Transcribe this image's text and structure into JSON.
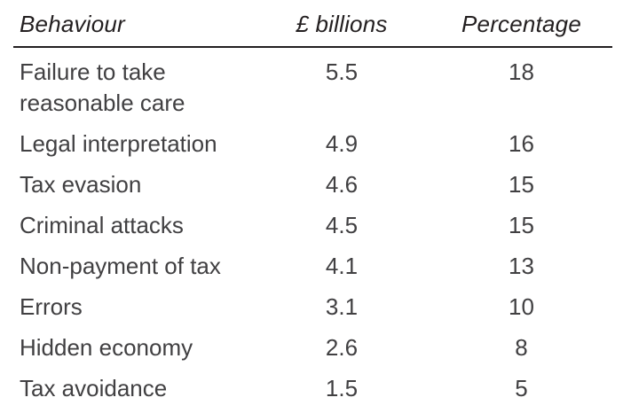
{
  "table": {
    "columns": [
      {
        "label": "Behaviour"
      },
      {
        "label": "£ billions"
      },
      {
        "label": "Percentage"
      }
    ],
    "rows": [
      {
        "behaviour": "Failure to take reasonable care",
        "billions": "5.5",
        "percentage": "18"
      },
      {
        "behaviour": "Legal interpretation",
        "billions": "4.9",
        "percentage": "16"
      },
      {
        "behaviour": "Tax evasion",
        "billions": "4.6",
        "percentage": "15"
      },
      {
        "behaviour": "Criminal attacks",
        "billions": "4.5",
        "percentage": "15"
      },
      {
        "behaviour": "Non-payment of tax",
        "billions": "4.1",
        "percentage": "13"
      },
      {
        "behaviour": "Errors",
        "billions": "3.1",
        "percentage": "10"
      },
      {
        "behaviour": "Hidden economy",
        "billions": "2.6",
        "percentage": "8"
      },
      {
        "behaviour": "Tax avoidance",
        "billions": "1.5",
        "percentage": "5"
      }
    ]
  },
  "colors": {
    "header_text": "#231f20",
    "body_text": "#414042",
    "header_rule": "#231f20",
    "background": "#ffffff"
  },
  "chart_data": {
    "type": "table",
    "title": "",
    "columns": [
      "Behaviour",
      "£ billions",
      "Percentage"
    ],
    "categories": [
      "Failure to take reasonable care",
      "Legal interpretation",
      "Tax evasion",
      "Criminal attacks",
      "Non-payment of tax",
      "Errors",
      "Hidden economy",
      "Tax avoidance"
    ],
    "series": [
      {
        "name": "£ billions",
        "values": [
          5.5,
          4.9,
          4.6,
          4.5,
          4.1,
          3.1,
          2.6,
          1.5
        ]
      },
      {
        "name": "Percentage",
        "values": [
          18,
          16,
          15,
          15,
          13,
          10,
          8,
          5
        ]
      }
    ]
  }
}
